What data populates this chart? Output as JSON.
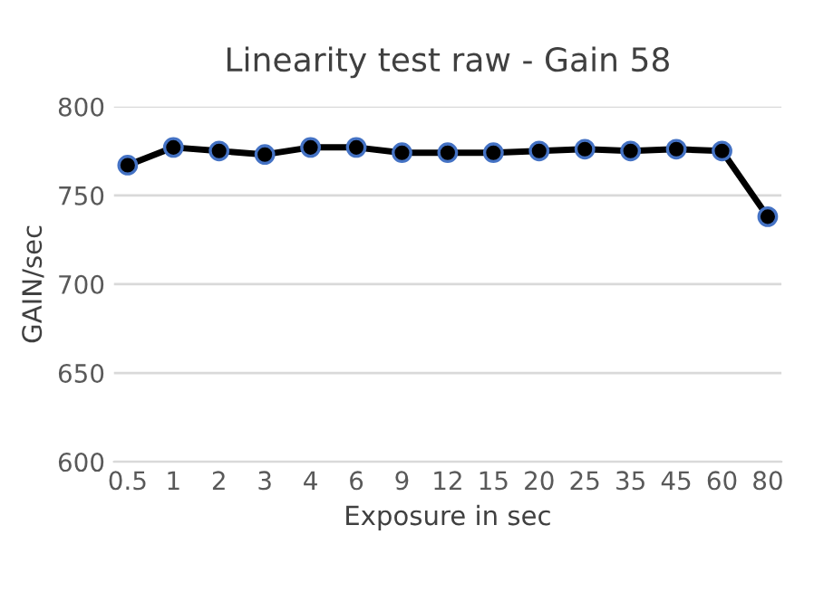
{
  "chart_data": {
    "type": "line",
    "title": "Linearity test raw - Gain 58",
    "xlabel": "Exposure in sec",
    "ylabel": "GAIN/sec",
    "categories": [
      "0.5",
      "1",
      "2",
      "3",
      "4",
      "6",
      "9",
      "12",
      "15",
      "20",
      "25",
      "35",
      "45",
      "60",
      "80"
    ],
    "series": [
      {
        "color": "#000000",
        "values": [
          767,
          777,
          775,
          773,
          777,
          777,
          774,
          774,
          774,
          775,
          776,
          775,
          776,
          775,
          738
        ]
      }
    ],
    "ylim": [
      600,
      800
    ],
    "yticks": [
      600,
      650,
      700,
      750,
      800
    ],
    "grid": "y",
    "marker": "circle",
    "line_style": "solid"
  }
}
